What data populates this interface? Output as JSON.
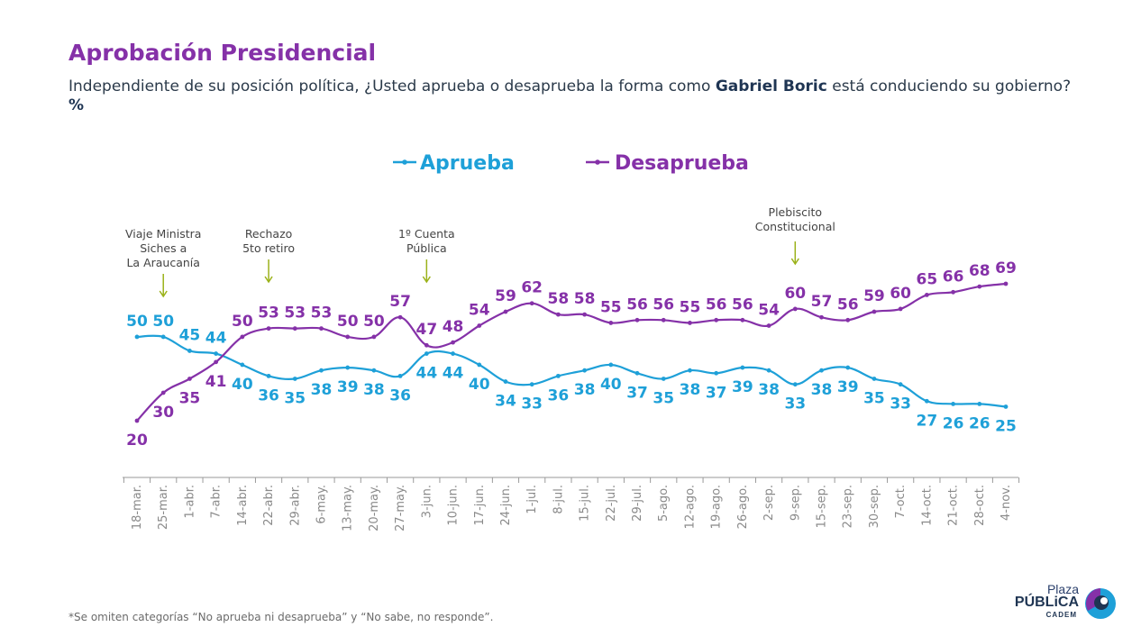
{
  "title": "Aprobación Presidencial",
  "subtitle_pre": "Independiente de su posición política, ¿Usted aprueba o desaprueba la forma como ",
  "subtitle_bold": "Gabriel Boric",
  "subtitle_post": " está conduciendo su gobierno? ",
  "subtitle_unit": "%",
  "footnote": "*Se omiten categorías “No aprueba ni desaprueba” y “No sabe, no responde”.",
  "logo": {
    "line1": "Plaza",
    "line2": "PÚBLiCA",
    "line3": "CADEM"
  },
  "colors": {
    "aprueba": "#1ea0d8",
    "desaprueba": "#8531a8",
    "annotation_arrow": "#9bb21a",
    "title": "#8531a8"
  },
  "chart_data": {
    "type": "line",
    "categories": [
      "18-mar.",
      "25-mar.",
      "1-abr.",
      "7-abr.",
      "14-abr.",
      "22-abr.",
      "29-abr.",
      "6-may.",
      "13-may.",
      "20-may.",
      "27-may.",
      "3-jun.",
      "10-jun.",
      "17-jun.",
      "24-jun.",
      "1-jul.",
      "8-jul.",
      "15-jul.",
      "22-jul.",
      "29-jul.",
      "5-ago.",
      "12-ago.",
      "19-ago.",
      "26-ago.",
      "2-sep.",
      "9-sep.",
      "15-sep.",
      "23-sep.",
      "30-sep.",
      "7-oct.",
      "14-oct.",
      "21-oct.",
      "28-oct.",
      "4-nov."
    ],
    "series": [
      {
        "name": "Aprueba",
        "color": "#1ea0d8",
        "values": [
          50,
          50,
          45,
          44,
          40,
          36,
          35,
          38,
          39,
          38,
          36,
          44,
          44,
          40,
          34,
          33,
          36,
          38,
          40,
          37,
          35,
          38,
          37,
          39,
          38,
          33,
          38,
          39,
          35,
          33,
          27,
          26,
          26,
          25
        ]
      },
      {
        "name": "Desaprueba",
        "color": "#8531a8",
        "values": [
          20,
          30,
          35,
          41,
          50,
          53,
          53,
          53,
          50,
          50,
          57,
          47,
          48,
          54,
          59,
          62,
          58,
          58,
          55,
          56,
          56,
          55,
          56,
          56,
          54,
          60,
          57,
          56,
          59,
          60,
          65,
          66,
          68,
          69
        ]
      }
    ],
    "annotations": [
      {
        "text": [
          "Viaje Ministra",
          "Siches a",
          "La Araucanía"
        ],
        "category_index": 1
      },
      {
        "text": [
          "Rechazo",
          "5to retiro"
        ],
        "category_index": 5
      },
      {
        "text": [
          "1º Cuenta",
          "Pública"
        ],
        "category_index": 11
      },
      {
        "text": [
          "Plebiscito",
          "Constitucional"
        ],
        "category_index": 25
      }
    ],
    "legend_position": "top-center",
    "grid": false
  }
}
